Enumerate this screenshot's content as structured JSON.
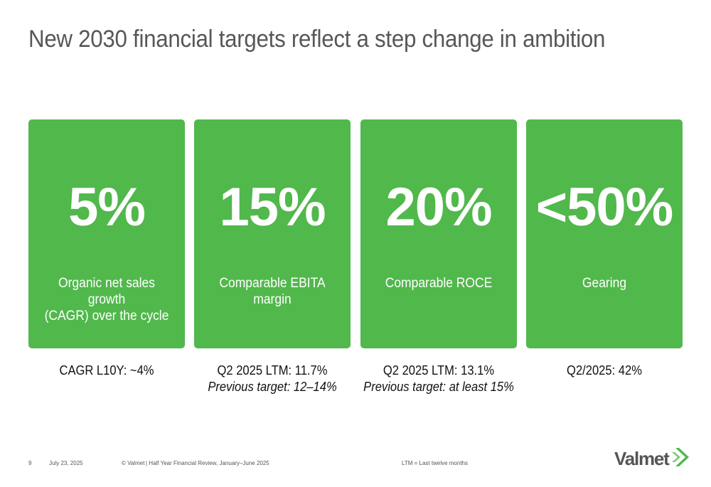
{
  "title": "New 2030 financial targets reflect a step change in ambition",
  "targets": [
    {
      "value": "5%",
      "label_line1": "Organic net sales growth",
      "label_line2": "(CAGR) over the cycle",
      "metric_line1": "CAGR L10Y: ~4%",
      "metric_line2": ""
    },
    {
      "value": "15%",
      "label_line1": "Comparable EBITA",
      "label_line2": "margin",
      "metric_line1": "Q2 2025 LTM: 11.7%",
      "metric_line2": "Previous target: 12–14%"
    },
    {
      "value": "20%",
      "label_line1": "Comparable ROCE",
      "label_line2": "",
      "metric_line1": "Q2 2025 LTM: 13.1%",
      "metric_line2": "Previous target: at least 15%"
    },
    {
      "value": "<50%",
      "label_line1": "Gearing",
      "label_line2": "",
      "metric_line1": "Q2/2025: 42%",
      "metric_line2": ""
    }
  ],
  "footer": {
    "page_number": "9",
    "date": "July 23, 2025",
    "copyright": "© Valmet",
    "document": "| Half Year Financial Review, January–June 2025",
    "note": "LTM = Last twelve months"
  },
  "logo": {
    "text": "Valmet",
    "icon": "valmet-chevron-icon"
  },
  "colors": {
    "card_green": "#51b84c",
    "title_gray": "#575757",
    "logo_gray": "#555555",
    "logo_green": "#51b84c"
  }
}
